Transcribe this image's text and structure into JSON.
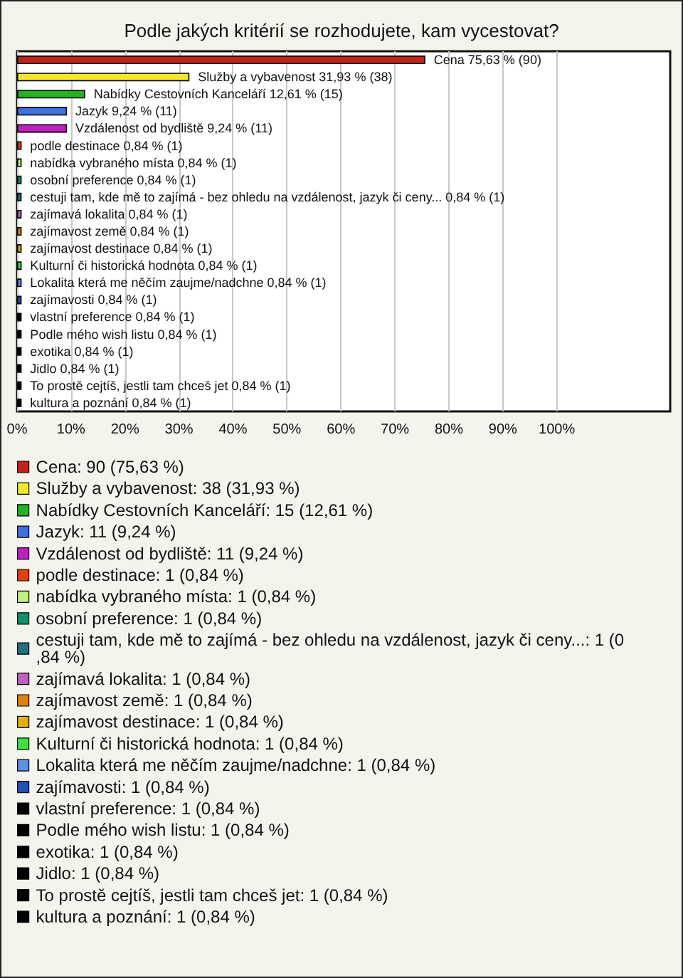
{
  "chart_data": {
    "type": "bar",
    "orientation": "horizontal",
    "stacked": true,
    "title": "Podle jakých kritérií se rozhodujete, kam vycestovat?",
    "categories": [
      null,
      null,
      null,
      null,
      null,
      null,
      null,
      null,
      null,
      null,
      null,
      null,
      null,
      null,
      null,
      null,
      null,
      null,
      null,
      null,
      null
    ],
    "series": [
      {
        "name": "Cena: 90 (75,63 %)",
        "color": "#c0241c",
        "values": [
          75.63,
          null,
          null,
          null,
          null,
          null,
          null,
          null,
          null,
          null,
          null,
          null,
          null,
          null,
          null,
          null,
          null,
          null,
          null,
          null,
          null
        ],
        "value_labels": [
          "Cena 75,63 % (90)",
          null,
          null,
          null,
          null,
          null,
          null,
          null,
          null,
          null,
          null,
          null,
          null,
          null,
          null,
          null,
          null,
          null,
          null,
          null,
          null
        ]
      },
      {
        "name": "Služby a vybavenost: 38 (31,93 %)",
        "color": "#f4e62c",
        "values": [
          null,
          31.93,
          null,
          null,
          null,
          null,
          null,
          null,
          null,
          null,
          null,
          null,
          null,
          null,
          null,
          null,
          null,
          null,
          null,
          null,
          null
        ],
        "value_labels": [
          null,
          "Služby a vybavenost 31,93 % (38)",
          null,
          null,
          null,
          null,
          null,
          null,
          null,
          null,
          null,
          null,
          null,
          null,
          null,
          null,
          null,
          null,
          null,
          null,
          null
        ]
      },
      {
        "name": "Nabídky Cestovních Kanceláří: 15 (12,61 %)",
        "color": "#22b222",
        "values": [
          null,
          null,
          12.61,
          null,
          null,
          null,
          null,
          null,
          null,
          null,
          null,
          null,
          null,
          null,
          null,
          null,
          null,
          null,
          null,
          null,
          null
        ],
        "value_labels": [
          null,
          null,
          "Nabídky Cestovních Kanceláří 12,61 % (15)",
          null,
          null,
          null,
          null,
          null,
          null,
          null,
          null,
          null,
          null,
          null,
          null,
          null,
          null,
          null,
          null,
          null,
          null
        ]
      },
      {
        "name": "Jazyk: 11 (9,24 %)",
        "color": "#4070e0",
        "values": [
          null,
          null,
          null,
          9.24,
          null,
          null,
          null,
          null,
          null,
          null,
          null,
          null,
          null,
          null,
          null,
          null,
          null,
          null,
          null,
          null,
          null
        ],
        "value_labels": [
          null,
          null,
          null,
          "Jazyk 9,24 % (11)",
          null,
          null,
          null,
          null,
          null,
          null,
          null,
          null,
          null,
          null,
          null,
          null,
          null,
          null,
          null,
          null,
          null
        ]
      },
      {
        "name": "Vzdálenost od bydliště: 11 (9,24 %)",
        "color": "#c020c0",
        "values": [
          null,
          null,
          null,
          null,
          9.24,
          null,
          null,
          null,
          null,
          null,
          null,
          null,
          null,
          null,
          null,
          null,
          null,
          null,
          null,
          null,
          null
        ],
        "value_labels": [
          null,
          null,
          null,
          null,
          "Vzdálenost od bydliště 9,24 % (11)",
          null,
          null,
          null,
          null,
          null,
          null,
          null,
          null,
          null,
          null,
          null,
          null,
          null,
          null,
          null,
          null
        ]
      },
      {
        "name": "podle destinace: 1 (0,84 %)",
        "color": "#e04010",
        "values": [
          null,
          null,
          null,
          null,
          null,
          0.84,
          null,
          null,
          null,
          null,
          null,
          null,
          null,
          null,
          null,
          null,
          null,
          null,
          null,
          null,
          null
        ],
        "value_labels": [
          null,
          null,
          null,
          null,
          null,
          "podle destinace 0,84 % (1)",
          null,
          null,
          null,
          null,
          null,
          null,
          null,
          null,
          null,
          null,
          null,
          null,
          null,
          null,
          null
        ]
      },
      {
        "name": "nabídka vybraného místa: 1 (0,84 %)",
        "color": "#c0f080",
        "values": [
          null,
          null,
          null,
          null,
          null,
          null,
          0.84,
          null,
          null,
          null,
          null,
          null,
          null,
          null,
          null,
          null,
          null,
          null,
          null,
          null,
          null
        ],
        "value_labels": [
          null,
          null,
          null,
          null,
          null,
          null,
          "nabídka vybraného místa 0,84 % (1)",
          null,
          null,
          null,
          null,
          null,
          null,
          null,
          null,
          null,
          null,
          null,
          null,
          null,
          null
        ]
      },
      {
        "name": "osobní preference: 1 (0,84 %)",
        "color": "#10906a",
        "values": [
          null,
          null,
          null,
          null,
          null,
          null,
          null,
          0.84,
          null,
          null,
          null,
          null,
          null,
          null,
          null,
          null,
          null,
          null,
          null,
          null,
          null
        ],
        "value_labels": [
          null,
          null,
          null,
          null,
          null,
          null,
          null,
          "osobní preference 0,84 % (1)",
          null,
          null,
          null,
          null,
          null,
          null,
          null,
          null,
          null,
          null,
          null,
          null,
          null
        ]
      },
      {
        "name": "cestuji tam, kde mě to zajímá - bez ohledu na vzdálenost, jazyk či ceny...: 1 (0,84 %)",
        "color": "#207080",
        "values": [
          null,
          null,
          null,
          null,
          null,
          null,
          null,
          null,
          0.84,
          null,
          null,
          null,
          null,
          null,
          null,
          null,
          null,
          null,
          null,
          null,
          null
        ],
        "value_labels": [
          null,
          null,
          null,
          null,
          null,
          null,
          null,
          null,
          "cestuji tam, kde mě to zajímá - bez ohledu na vzdálenost, jazyk či ceny... 0,84 % (1)",
          null,
          null,
          null,
          null,
          null,
          null,
          null,
          null,
          null,
          null,
          null,
          null
        ]
      },
      {
        "name": "zajímavá lokalita: 1 (0,84 %)",
        "color": "#c060c0",
        "values": [
          null,
          null,
          null,
          null,
          null,
          null,
          null,
          null,
          null,
          0.84,
          null,
          null,
          null,
          null,
          null,
          null,
          null,
          null,
          null,
          null,
          null
        ],
        "value_labels": [
          null,
          null,
          null,
          null,
          null,
          null,
          null,
          null,
          null,
          "zajímavá lokalita 0,84 % (1)",
          null,
          null,
          null,
          null,
          null,
          null,
          null,
          null,
          null,
          null,
          null
        ]
      },
      {
        "name": "zajímavost země: 1 (0,84 %)",
        "color": "#e08010",
        "values": [
          null,
          null,
          null,
          null,
          null,
          null,
          null,
          null,
          null,
          null,
          0.84,
          null,
          null,
          null,
          null,
          null,
          null,
          null,
          null,
          null,
          null
        ],
        "value_labels": [
          null,
          null,
          null,
          null,
          null,
          null,
          null,
          null,
          null,
          null,
          "zajímavost země 0,84 % (1)",
          null,
          null,
          null,
          null,
          null,
          null,
          null,
          null,
          null,
          null
        ]
      },
      {
        "name": "zajímavost destinace: 1 (0,84 %)",
        "color": "#e0b010",
        "values": [
          null,
          null,
          null,
          null,
          null,
          null,
          null,
          null,
          null,
          null,
          null,
          0.84,
          null,
          null,
          null,
          null,
          null,
          null,
          null,
          null,
          null
        ],
        "value_labels": [
          null,
          null,
          null,
          null,
          null,
          null,
          null,
          null,
          null,
          null,
          null,
          "zajímavost destinace 0,84 % (1)",
          null,
          null,
          null,
          null,
          null,
          null,
          null,
          null,
          null
        ]
      },
      {
        "name": "Kulturní či historická hodnota: 1 (0,84 %)",
        "color": "#40e040",
        "values": [
          null,
          null,
          null,
          null,
          null,
          null,
          null,
          null,
          null,
          null,
          null,
          null,
          0.84,
          null,
          null,
          null,
          null,
          null,
          null,
          null,
          null
        ],
        "value_labels": [
          null,
          null,
          null,
          null,
          null,
          null,
          null,
          null,
          null,
          null,
          null,
          null,
          "Kulturní či historická hodnota 0,84 % (1)",
          null,
          null,
          null,
          null,
          null,
          null,
          null,
          null
        ]
      },
      {
        "name": "Lokalita která me něčím zaujme/nadchne: 1 (0,84 %)",
        "color": "#6090e0",
        "values": [
          null,
          null,
          null,
          null,
          null,
          null,
          null,
          null,
          null,
          null,
          null,
          null,
          null,
          0.84,
          null,
          null,
          null,
          null,
          null,
          null,
          null
        ],
        "value_labels": [
          null,
          null,
          null,
          null,
          null,
          null,
          null,
          null,
          null,
          null,
          null,
          null,
          null,
          "Lokalita která me něčím zaujme/nadchne 0,84 % (1)",
          null,
          null,
          null,
          null,
          null,
          null,
          null
        ]
      },
      {
        "name": "zajímavosti: 1 (0,84 %)",
        "color": "#2050b0",
        "values": [
          null,
          null,
          null,
          null,
          null,
          null,
          null,
          null,
          null,
          null,
          null,
          null,
          null,
          null,
          0.84,
          null,
          null,
          null,
          null,
          null,
          null
        ],
        "value_labels": [
          null,
          null,
          null,
          null,
          null,
          null,
          null,
          null,
          null,
          null,
          null,
          null,
          null,
          null,
          "zajímavosti 0,84 % (1)",
          null,
          null,
          null,
          null,
          null,
          null
        ]
      },
      {
        "name": "vlastní preference: 1 (0,84 %)",
        "color": "#000000",
        "values": [
          null,
          null,
          null,
          null,
          null,
          null,
          null,
          null,
          null,
          null,
          null,
          null,
          null,
          null,
          null,
          0.84,
          null,
          null,
          null,
          null,
          null
        ],
        "value_labels": [
          null,
          null,
          null,
          null,
          null,
          null,
          null,
          null,
          null,
          null,
          null,
          null,
          null,
          null,
          null,
          "vlastní preference 0,84 % (1)",
          null,
          null,
          null,
          null,
          null
        ]
      },
      {
        "name": "Podle mého wish listu: 1 (0,84 %)",
        "color": "#000000",
        "values": [
          null,
          null,
          null,
          null,
          null,
          null,
          null,
          null,
          null,
          null,
          null,
          null,
          null,
          null,
          null,
          null,
          0.84,
          null,
          null,
          null,
          null
        ],
        "value_labels": [
          null,
          null,
          null,
          null,
          null,
          null,
          null,
          null,
          null,
          null,
          null,
          null,
          null,
          null,
          null,
          null,
          "Podle mého wish listu 0,84 % (1)",
          null,
          null,
          null,
          null
        ]
      },
      {
        "name": "exotika: 1 (0,84 %)",
        "color": "#000000",
        "values": [
          null,
          null,
          null,
          null,
          null,
          null,
          null,
          null,
          null,
          null,
          null,
          null,
          null,
          null,
          null,
          null,
          null,
          0.84,
          null,
          null,
          null
        ],
        "value_labels": [
          null,
          null,
          null,
          null,
          null,
          null,
          null,
          null,
          null,
          null,
          null,
          null,
          null,
          null,
          null,
          null,
          null,
          "exotika 0,84 % (1)",
          null,
          null,
          null
        ]
      },
      {
        "name": "Jidlo: 1 (0,84 %)",
        "color": "#000000",
        "values": [
          null,
          null,
          null,
          null,
          null,
          null,
          null,
          null,
          null,
          null,
          null,
          null,
          null,
          null,
          null,
          null,
          null,
          null,
          0.84,
          null,
          null
        ],
        "value_labels": [
          null,
          null,
          null,
          null,
          null,
          null,
          null,
          null,
          null,
          null,
          null,
          null,
          null,
          null,
          null,
          null,
          null,
          null,
          "Jidlo 0,84 % (1)",
          null,
          null
        ]
      },
      {
        "name": "To prostě cejtíš, jestli tam chceš jet: 1 (0,84 %)",
        "color": "#000000",
        "values": [
          null,
          null,
          null,
          null,
          null,
          null,
          null,
          null,
          null,
          null,
          null,
          null,
          null,
          null,
          null,
          null,
          null,
          null,
          null,
          0.84,
          null
        ],
        "value_labels": [
          null,
          null,
          null,
          null,
          null,
          null,
          null,
          null,
          null,
          null,
          null,
          null,
          null,
          null,
          null,
          null,
          null,
          null,
          null,
          "To prostě cejtíš, jestli tam chceš jet 0,84 % (1)",
          null
        ]
      },
      {
        "name": "kultura a poznání: 1 (0,84 %)",
        "color": "#000000",
        "values": [
          null,
          null,
          null,
          null,
          null,
          null,
          null,
          null,
          null,
          null,
          null,
          null,
          null,
          null,
          null,
          null,
          null,
          null,
          null,
          null,
          0.84
        ],
        "value_labels": [
          null,
          null,
          null,
          null,
          null,
          null,
          null,
          null,
          null,
          null,
          null,
          null,
          null,
          null,
          null,
          null,
          null,
          null,
          null,
          null,
          "kultura a poznání 0,84 % (1)"
        ]
      }
    ],
    "xlim": [
      0,
      121
    ],
    "xticks": [
      {
        "value": 0,
        "label": "0%"
      },
      {
        "value": 10,
        "label": "10%"
      },
      {
        "value": 20,
        "label": "20%"
      },
      {
        "value": 30,
        "label": "30%"
      },
      {
        "value": 40,
        "label": "40%"
      },
      {
        "value": 50,
        "label": "50%"
      },
      {
        "value": 60,
        "label": "60%"
      },
      {
        "value": 70,
        "label": "70%"
      },
      {
        "value": 80,
        "label": "80%"
      },
      {
        "value": 90,
        "label": "90%"
      },
      {
        "value": 100,
        "label": "100%"
      }
    ],
    "grid": "x",
    "legend": "bottom",
    "tick_labels": "x"
  }
}
